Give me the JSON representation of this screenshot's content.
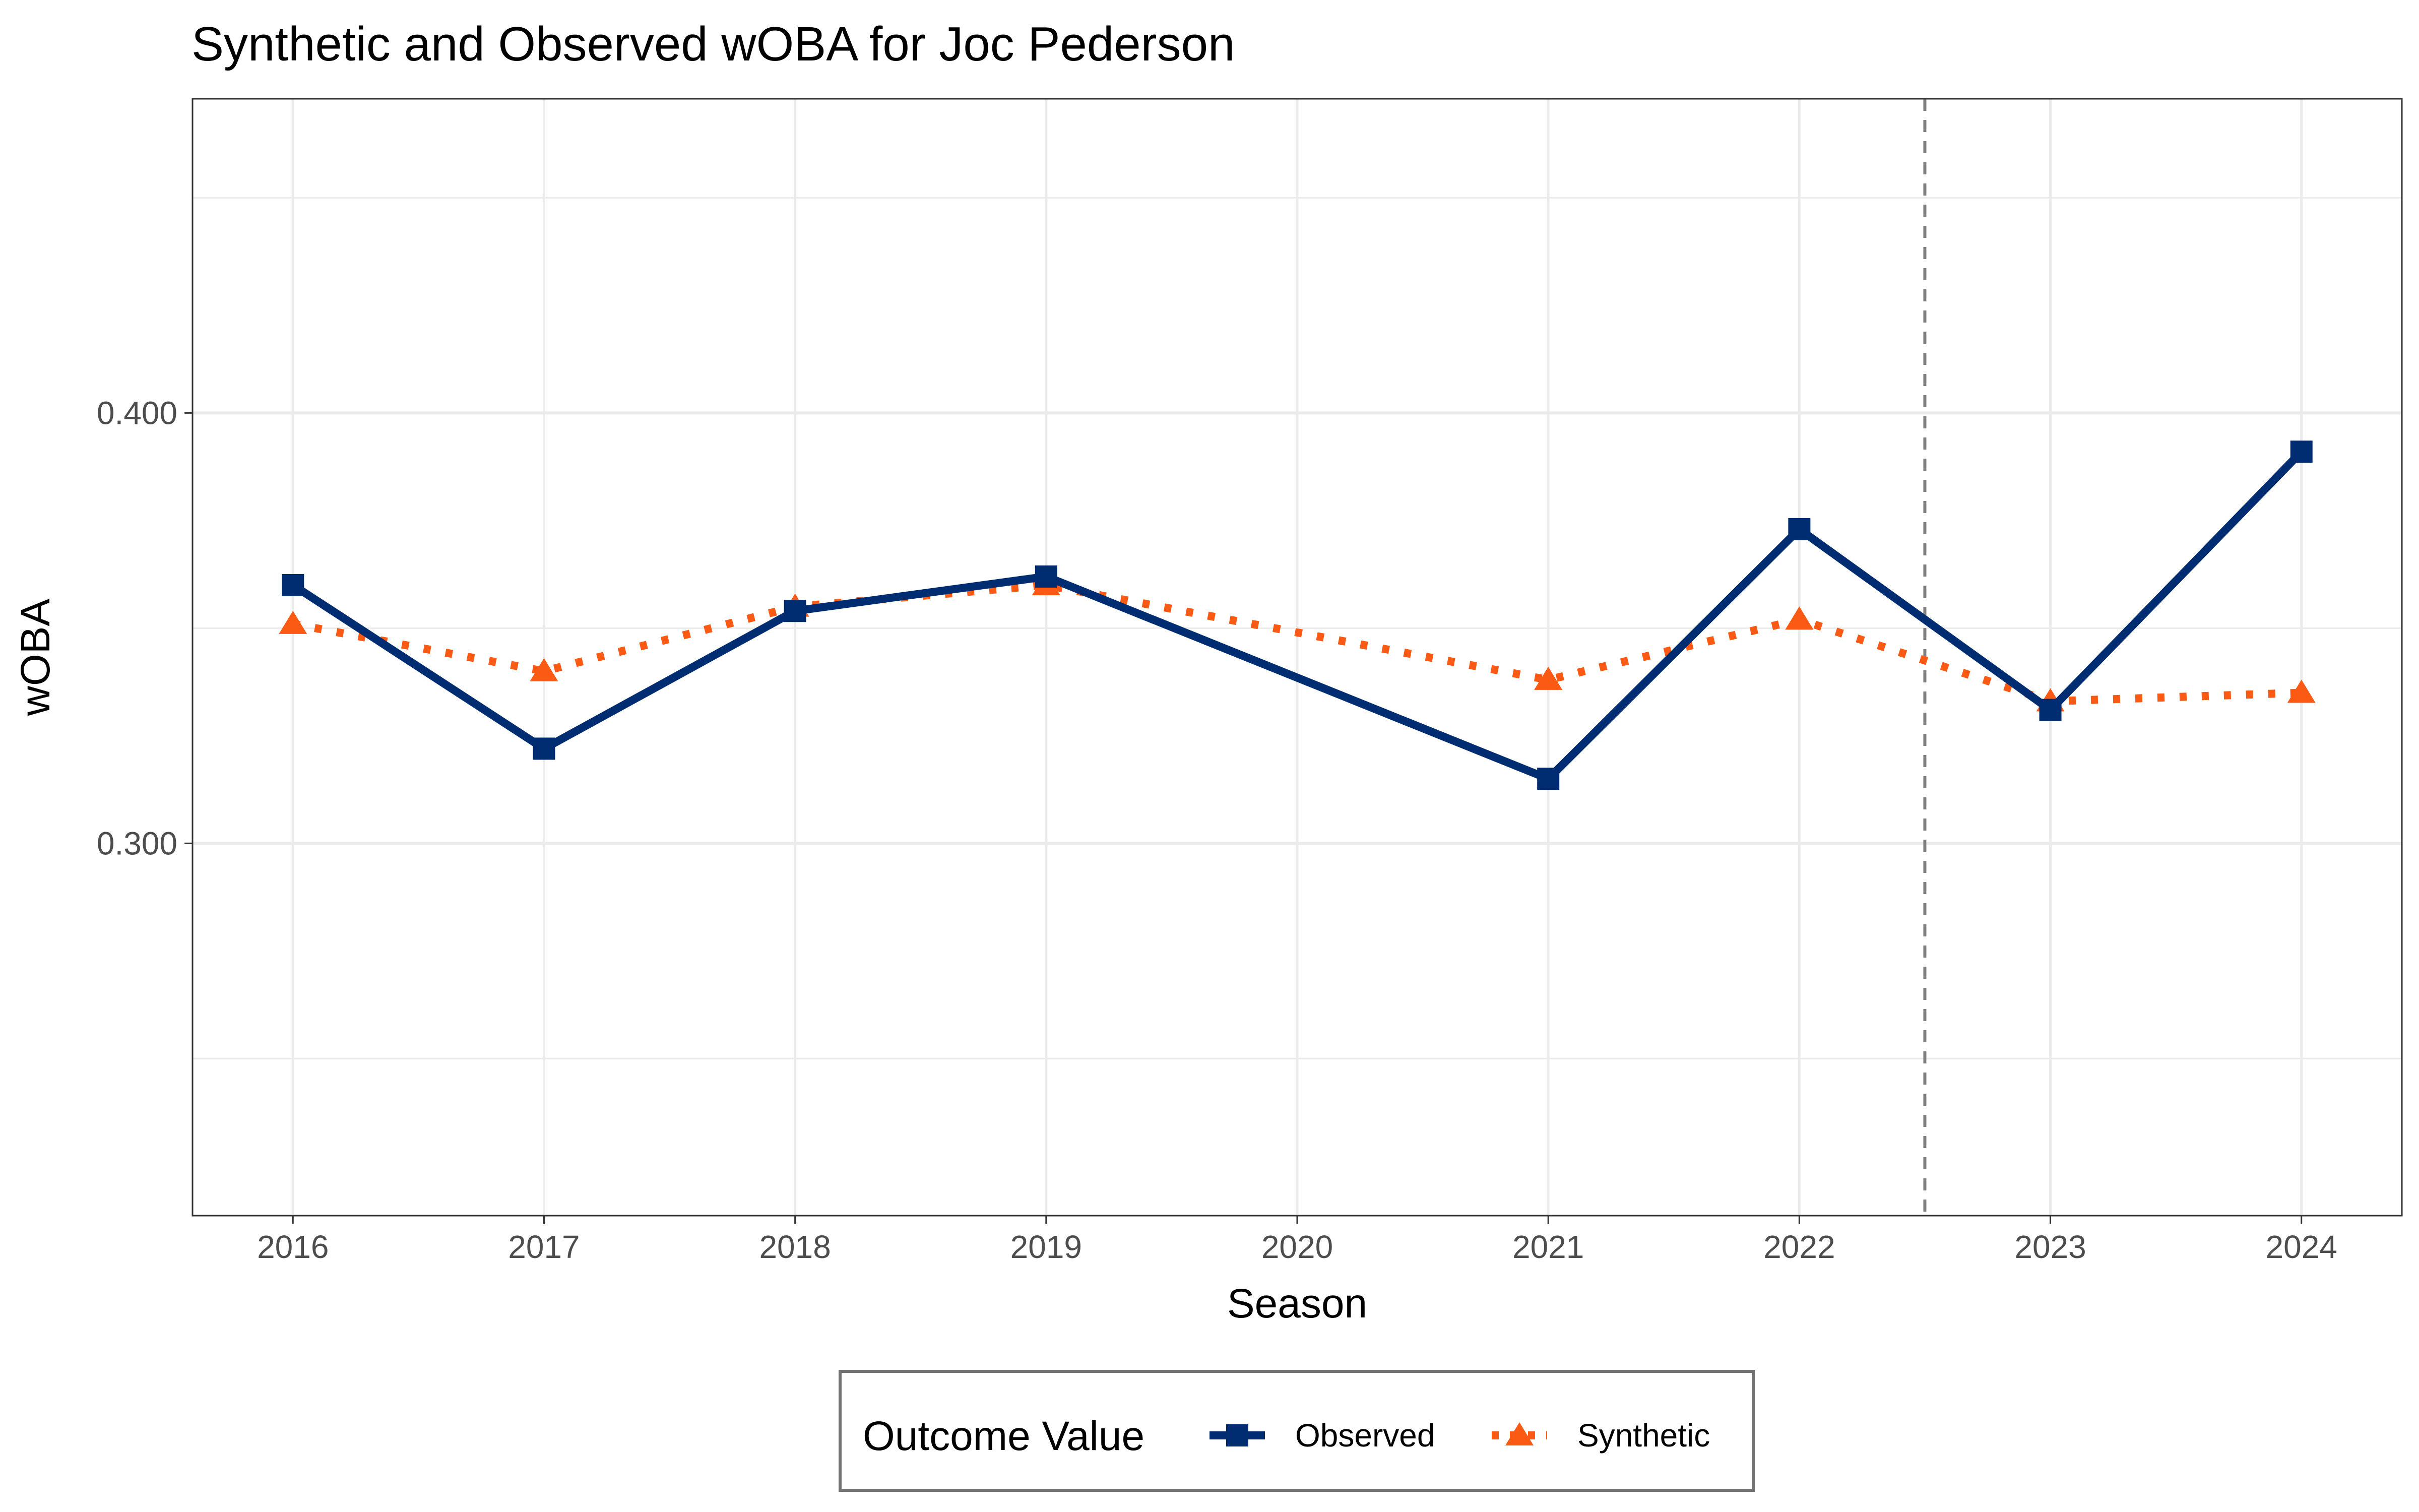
{
  "chart_data": {
    "type": "line",
    "title": "Synthetic and Observed wOBA for Joc Pederson",
    "xlabel": "Season",
    "ylabel": "wOBA",
    "x": [
      2016,
      2017,
      2018,
      2019,
      2020,
      2021,
      2022,
      2023,
      2024
    ],
    "x_tick_labels": [
      "2016",
      "2017",
      "2018",
      "2019",
      "2020",
      "2021",
      "2022",
      "2023",
      "2024"
    ],
    "y_ticks": [
      0.3,
      0.4
    ],
    "y_tick_labels": [
      "0.300",
      "0.400"
    ],
    "ylim": [
      0.2135,
      0.473
    ],
    "xlim": [
      2015.6,
      2024.4
    ],
    "grid": true,
    "treatment_line_x": 2022.5,
    "series": [
      {
        "name": "Observed",
        "color": "#002D72",
        "marker": "square",
        "line_style": "solid",
        "points": [
          {
            "x": 2016,
            "y": 0.36
          },
          {
            "x": 2017,
            "y": 0.322
          },
          {
            "x": 2018,
            "y": 0.354
          },
          {
            "x": 2019,
            "y": 0.362
          },
          {
            "x": 2021,
            "y": 0.315
          },
          {
            "x": 2022,
            "y": 0.373
          },
          {
            "x": 2023,
            "y": 0.331
          },
          {
            "x": 2024,
            "y": 0.391
          }
        ]
      },
      {
        "name": "Synthetic",
        "color": "#FA5A14",
        "marker": "triangle",
        "line_style": "dotted",
        "points": [
          {
            "x": 2016,
            "y": 0.351
          },
          {
            "x": 2017,
            "y": 0.34
          },
          {
            "x": 2018,
            "y": 0.355
          },
          {
            "x": 2019,
            "y": 0.36
          },
          {
            "x": 2021,
            "y": 0.338
          },
          {
            "x": 2022,
            "y": 0.352
          },
          {
            "x": 2023,
            "y": 0.333
          },
          {
            "x": 2024,
            "y": 0.335
          }
        ]
      }
    ],
    "legend": {
      "title": "Outcome Value",
      "position": "bottom",
      "entries": [
        "Observed",
        "Synthetic"
      ]
    }
  }
}
